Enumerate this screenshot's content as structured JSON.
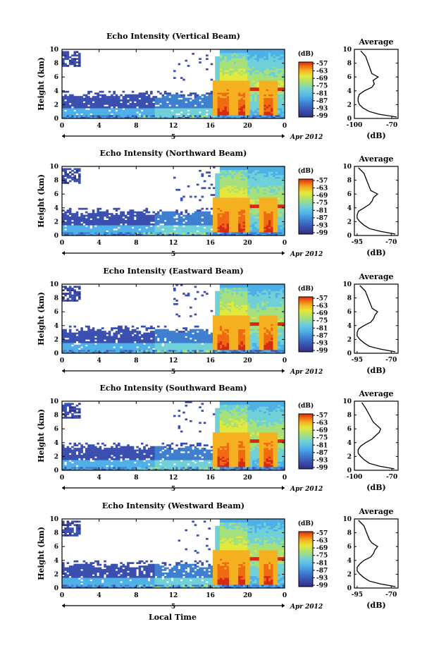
{
  "figure": {
    "xlabel": "Local Time",
    "date_label": "Apr 2012",
    "day_mark": "5",
    "colorbar_title": "(dB)",
    "colorbar_ticks": [
      "-57",
      "-63",
      "-69",
      "-75",
      "-81",
      "-87",
      "-93",
      "-99"
    ],
    "colors": {
      "axis": "#000000",
      "cmap": [
        "#30307f",
        "#3a4fb0",
        "#3f7fd0",
        "#4fb0e8",
        "#6fd0d8",
        "#a6e07a",
        "#e4e83a",
        "#f5b020",
        "#ef6a10",
        "#d62a10"
      ]
    }
  },
  "chart_data": [
    {
      "type": "heatmap",
      "title": "Echo Intensity (Vertical Beam)",
      "ylabel": "Height (km)",
      "x_ticks": [
        "0",
        "4",
        "8",
        "12",
        "16",
        "20",
        "0"
      ],
      "y_ticks": [
        "0",
        "2",
        "4",
        "6",
        "8",
        "10"
      ],
      "xlim": [
        0,
        24
      ],
      "ylim": [
        0,
        10
      ],
      "clim": [
        -99,
        -57
      ],
      "profile": {
        "title": "Average",
        "xlabel": "(dB)",
        "x_ticks": [
          "-100",
          "-70"
        ],
        "xlim": [
          -100,
          -65
        ],
        "ylim": [
          0,
          10
        ],
        "y_ticks": [
          "0",
          "2",
          "4",
          "6",
          "8",
          "10"
        ],
        "heights": [
          0.2,
          0.6,
          1.0,
          1.5,
          2.0,
          2.5,
          3.0,
          3.5,
          4.0,
          4.5,
          5.0,
          5.5,
          6.0,
          6.5,
          7.0,
          8.0,
          9.0,
          9.8
        ],
        "values": [
          -66,
          -80,
          -88,
          -93,
          -96,
          -97,
          -97,
          -96,
          -92,
          -86,
          -84,
          -85,
          -81,
          -86,
          -87,
          -89,
          -91,
          -95
        ]
      }
    },
    {
      "type": "heatmap",
      "title": "Echo Intensity (Northward Beam)",
      "ylabel": "Height (km)",
      "x_ticks": [
        "0",
        "4",
        "8",
        "12",
        "16",
        "20",
        "0"
      ],
      "y_ticks": [
        "0",
        "2",
        "4",
        "6",
        "8",
        "10"
      ],
      "xlim": [
        0,
        24
      ],
      "ylim": [
        0,
        10
      ],
      "clim": [
        -99,
        -57
      ],
      "profile": {
        "title": "Average",
        "xlabel": "(dB)",
        "x_ticks": [
          "-95",
          "-70"
        ],
        "xlim": [
          -97,
          -65
        ],
        "ylim": [
          0,
          10
        ],
        "y_ticks": [
          "0",
          "2",
          "4",
          "6",
          "8",
          "10"
        ],
        "heights": [
          0.2,
          0.6,
          1.0,
          1.5,
          2.0,
          2.5,
          3.0,
          3.5,
          4.0,
          4.5,
          5.0,
          5.5,
          6.0,
          6.5,
          7.0,
          8.0,
          9.0,
          9.8
        ],
        "values": [
          -67,
          -78,
          -86,
          -90,
          -93,
          -95,
          -95,
          -94,
          -90,
          -86,
          -84,
          -83,
          -80,
          -85,
          -86,
          -88,
          -90,
          -94
        ]
      }
    },
    {
      "type": "heatmap",
      "title": "Echo Intensity (Eastward Beam)",
      "ylabel": "Height (km)",
      "x_ticks": [
        "0",
        "4",
        "8",
        "12",
        "16",
        "20",
        "0"
      ],
      "y_ticks": [
        "0",
        "2",
        "4",
        "6",
        "8",
        "10"
      ],
      "xlim": [
        0,
        24
      ],
      "ylim": [
        0,
        10
      ],
      "clim": [
        -99,
        -57
      ],
      "profile": {
        "title": "Average",
        "xlabel": "(dB)",
        "x_ticks": [
          "-95",
          "-70"
        ],
        "xlim": [
          -97,
          -65
        ],
        "ylim": [
          0,
          10
        ],
        "y_ticks": [
          "0",
          "2",
          "4",
          "6",
          "8",
          "10"
        ],
        "heights": [
          0.2,
          0.6,
          1.0,
          1.5,
          2.0,
          2.5,
          3.0,
          3.5,
          4.0,
          4.5,
          5.0,
          5.5,
          6.0,
          6.5,
          7.0,
          8.0,
          9.0,
          9.8
        ],
        "values": [
          -67,
          -78,
          -86,
          -90,
          -93,
          -95,
          -95,
          -94,
          -90,
          -85,
          -83,
          -82,
          -80,
          -84,
          -85,
          -87,
          -89,
          -93
        ]
      }
    },
    {
      "type": "heatmap",
      "title": "Echo Intensity (Southward Beam)",
      "ylabel": "Height (km)",
      "x_ticks": [
        "0",
        "4",
        "8",
        "12",
        "16",
        "20",
        "0"
      ],
      "y_ticks": [
        "0",
        "2",
        "4",
        "6",
        "8",
        "10"
      ],
      "xlim": [
        0,
        24
      ],
      "ylim": [
        0,
        10
      ],
      "clim": [
        -99,
        -57
      ],
      "profile": {
        "title": "Average",
        "xlabel": "(dB)",
        "x_ticks": [
          "-100",
          "-70"
        ],
        "xlim": [
          -100,
          -65
        ],
        "ylim": [
          0,
          10
        ],
        "y_ticks": [
          "0",
          "2",
          "4",
          "6",
          "8",
          "10"
        ],
        "heights": [
          0.2,
          0.6,
          1.0,
          1.5,
          2.0,
          2.5,
          3.0,
          3.5,
          4.0,
          4.5,
          5.0,
          5.5,
          6.0,
          6.5,
          7.0,
          8.0,
          9.0,
          9.8
        ],
        "values": [
          -68,
          -80,
          -88,
          -92,
          -95,
          -97,
          -97,
          -95,
          -91,
          -86,
          -83,
          -80,
          -79,
          -82,
          -85,
          -88,
          -91,
          -94
        ]
      }
    },
    {
      "type": "heatmap",
      "title": "Echo Intensity (Westward Beam)",
      "ylabel": "Height (km)",
      "x_ticks": [
        "0",
        "4",
        "8",
        "12",
        "16",
        "20",
        "0"
      ],
      "y_ticks": [
        "0",
        "2",
        "4",
        "6",
        "8",
        "10"
      ],
      "xlim": [
        0,
        24
      ],
      "ylim": [
        0,
        10
      ],
      "clim": [
        -99,
        -57
      ],
      "profile": {
        "title": "Average",
        "xlabel": "(dB)",
        "x_ticks": [
          "-95",
          "-70"
        ],
        "xlim": [
          -97,
          -65
        ],
        "ylim": [
          0,
          10
        ],
        "y_ticks": [
          "0",
          "2",
          "4",
          "6",
          "8",
          "10"
        ],
        "heights": [
          0.2,
          0.6,
          1.0,
          1.5,
          2.0,
          2.5,
          3.0,
          3.5,
          4.0,
          4.5,
          5.0,
          5.5,
          6.0,
          6.5,
          7.0,
          8.0,
          9.0,
          9.8
        ],
        "values": [
          -67,
          -78,
          -86,
          -90,
          -93,
          -95,
          -95,
          -93,
          -90,
          -85,
          -83,
          -82,
          -80,
          -84,
          -86,
          -88,
          -90,
          -94
        ]
      }
    }
  ]
}
